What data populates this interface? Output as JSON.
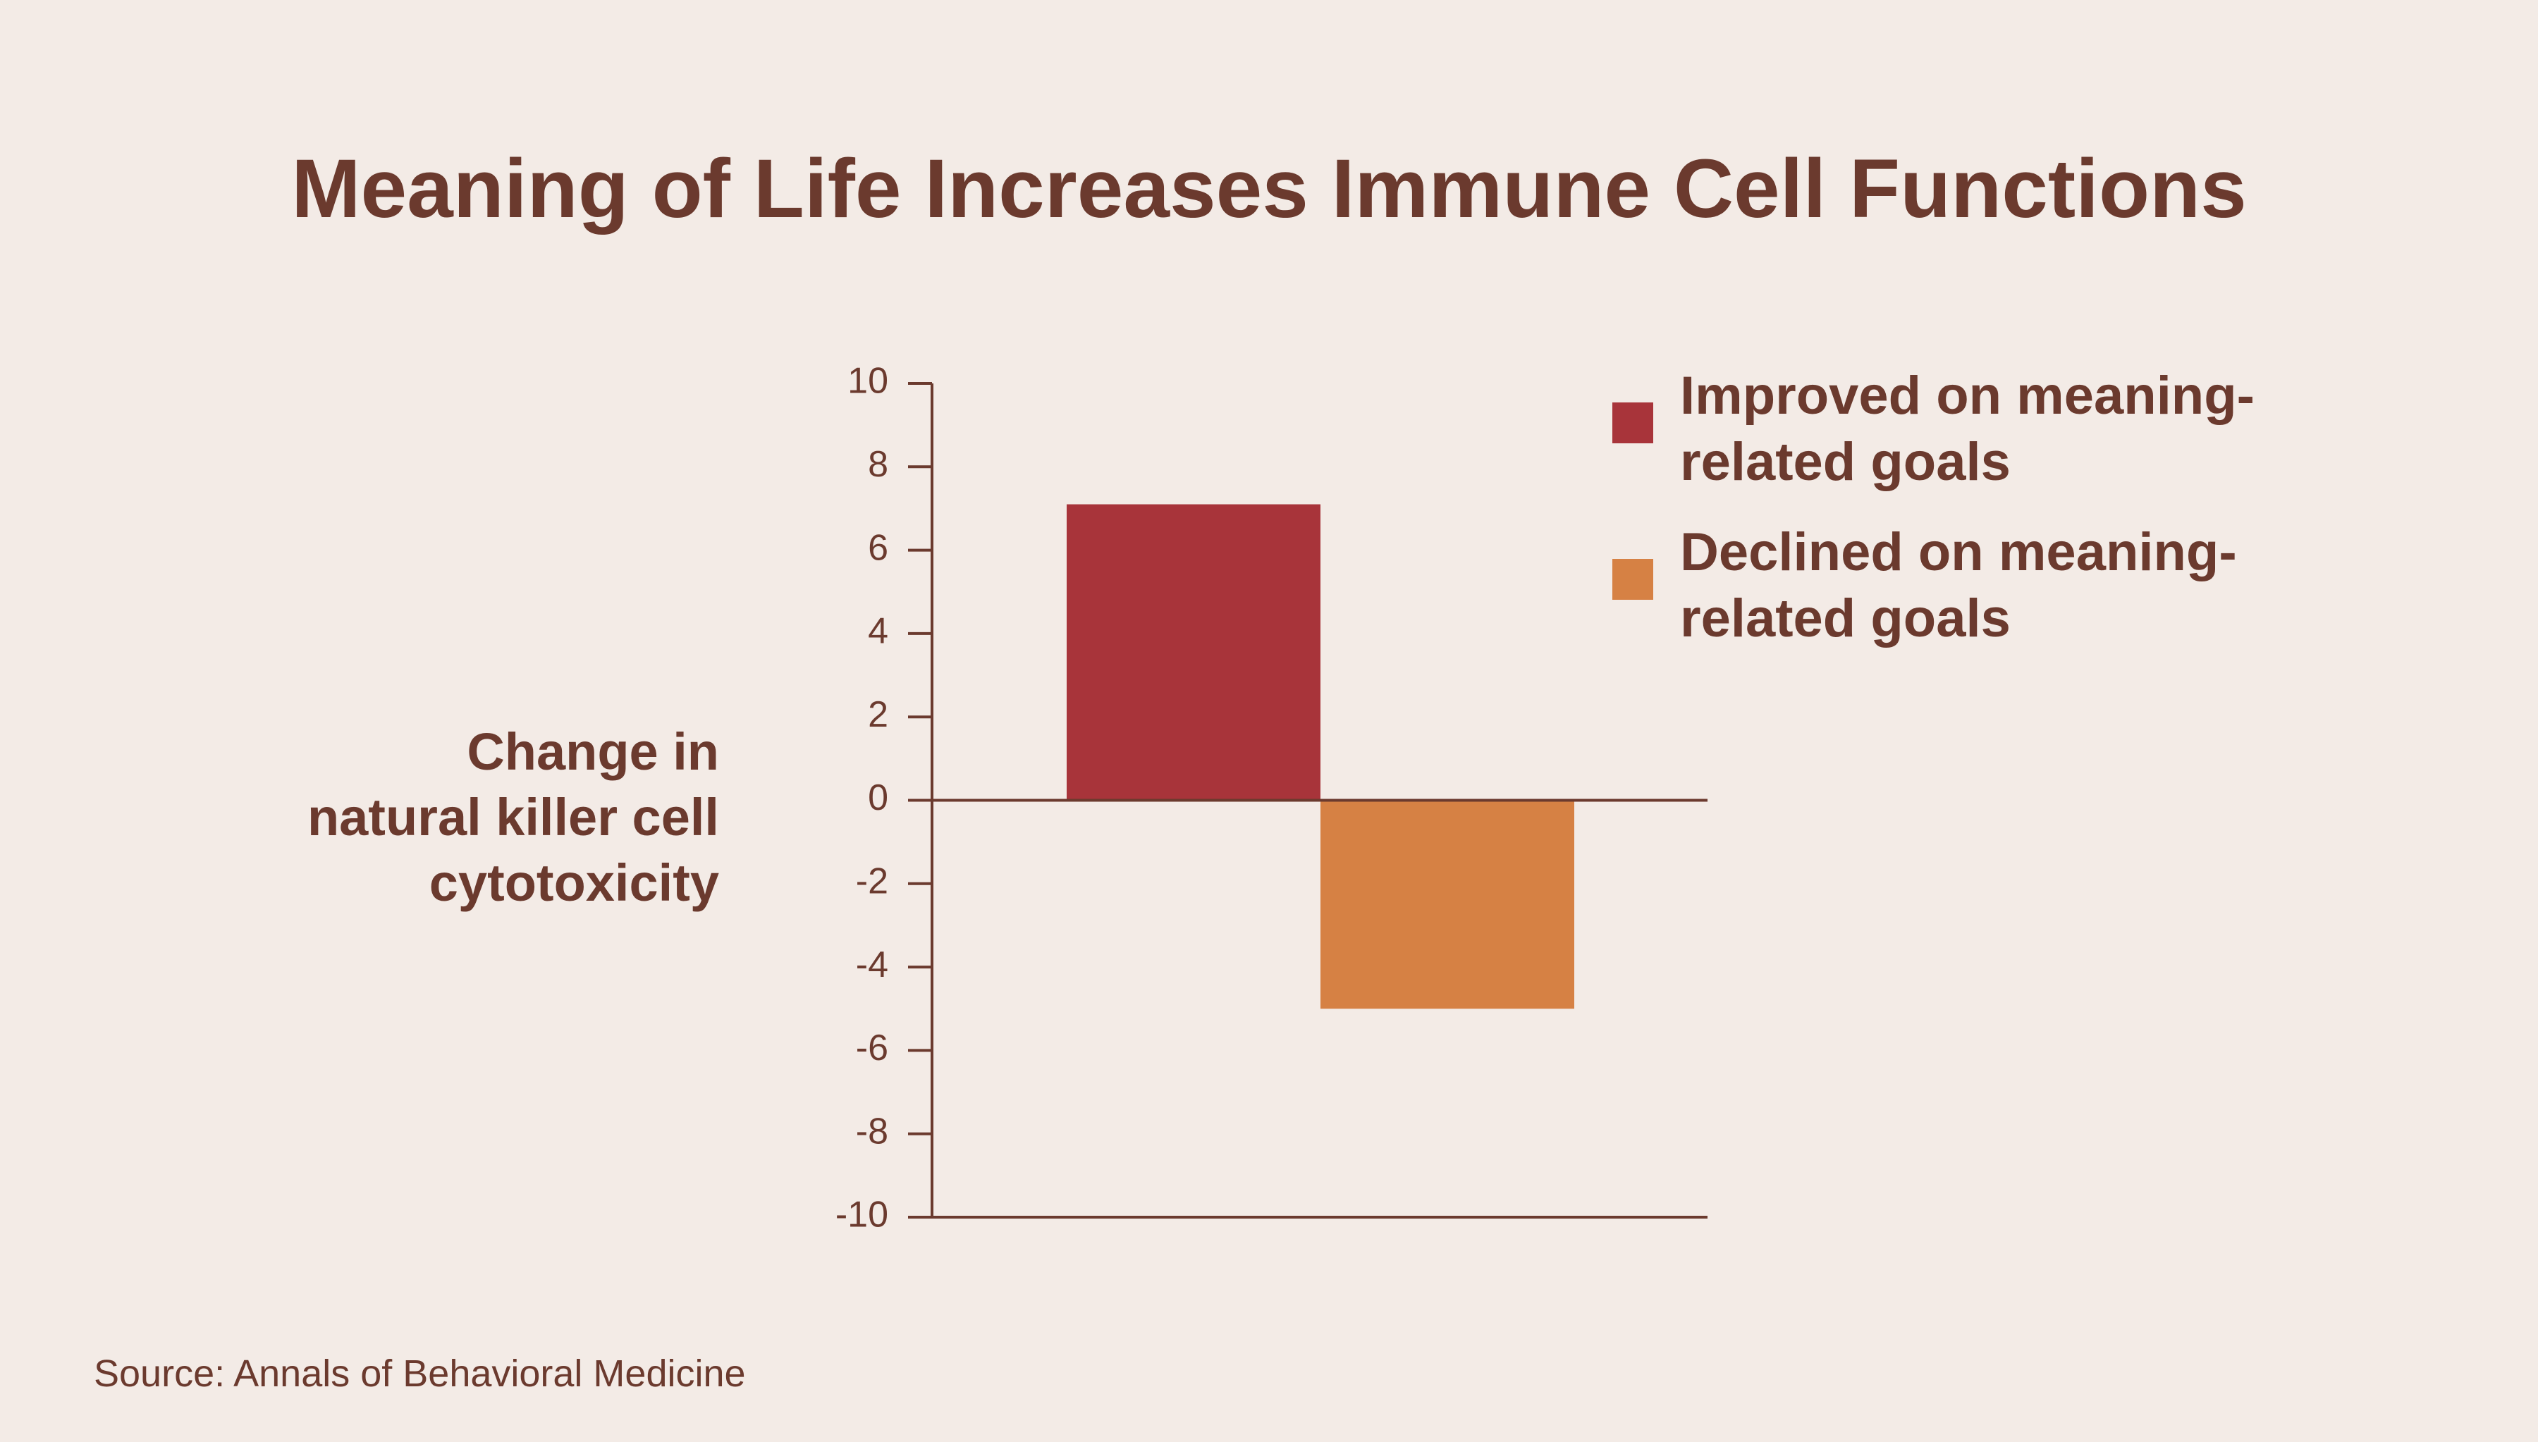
{
  "chart_data": {
    "type": "bar",
    "title": "Meaning of Life Increases Immune Cell Functions",
    "y_label": "Change in natural killer cell cytotoxicity",
    "source": "Source: Annals of Behavioral Medicine",
    "categories": [
      null
    ],
    "series": [
      {
        "name": "Improved on meaning-related goals",
        "color": "#a8343a",
        "values": [
          7.1
        ]
      },
      {
        "name": "Declined on meaning-related goals",
        "color": "#d68144",
        "values": [
          -5
        ]
      }
    ],
    "ylim": [
      -10,
      10
    ],
    "yticks": [
      -10,
      -8,
      -6,
      -4,
      -2,
      0,
      2,
      4,
      6,
      8,
      10
    ],
    "grid": false,
    "legend": "right"
  }
}
